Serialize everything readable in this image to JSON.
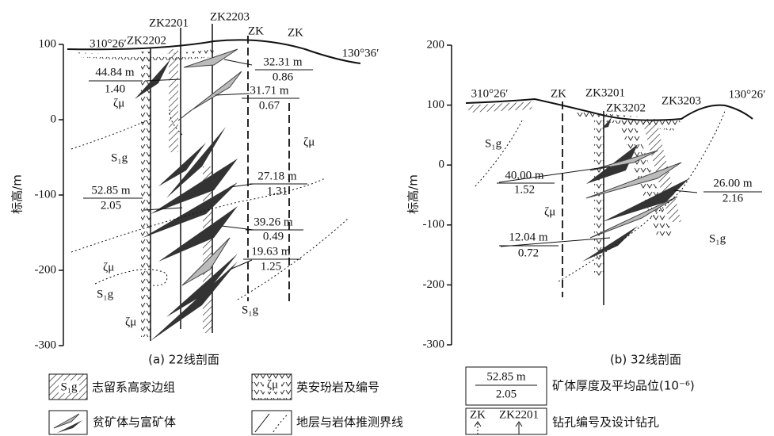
{
  "panels": [
    {
      "ylim": [
        -300,
        100
      ],
      "yticks": [
        -300,
        -200,
        -100,
        0,
        100
      ],
      "axis_label": "标高/m",
      "caption": "(a) 22线剖面",
      "bearings": [
        "310°26′",
        "130°36′"
      ],
      "drillholes": [
        "ZK2202",
        "ZK2201",
        "ZK2203",
        "ZK",
        "ZK"
      ],
      "orebodies": [
        {
          "thickness": "44.84 m",
          "grade": "1.40"
        },
        {
          "thickness": "32.31 m",
          "grade": "0.86"
        },
        {
          "thickness": "31.71 m",
          "grade": "0.67"
        },
        {
          "thickness": "27.18 m",
          "grade": "1.31"
        },
        {
          "thickness": "52.85 m",
          "grade": "2.05"
        },
        {
          "thickness": "39.26 m",
          "grade": "0.49"
        },
        {
          "thickness": "19.63 m",
          "grade": "1.25"
        }
      ],
      "rock_labels": [
        "ζμ",
        "ζμ",
        "ζμ",
        "ζμ",
        "S₁g",
        "S₁g",
        "S₁g"
      ]
    },
    {
      "ylim": [
        -300,
        200
      ],
      "yticks": [
        -300,
        -200,
        -100,
        0,
        100,
        200
      ],
      "axis_label": "标高/m",
      "caption": "(b) 32线剖面",
      "bearings": [
        "310°26′",
        "130°26′"
      ],
      "drillholes": [
        "ZK",
        "ZK3201",
        "ZK3202",
        "ZK3203"
      ],
      "orebodies": [
        {
          "thickness": "40.00 m",
          "grade": "1.52"
        },
        {
          "thickness": "26.00 m",
          "grade": "2.16"
        },
        {
          "thickness": "12.04 m",
          "grade": "0.72"
        }
      ],
      "rock_labels": [
        "ζμ",
        "S₁g",
        "S₁g"
      ]
    }
  ],
  "legend": [
    {
      "label": "志留系高家边组",
      "symbol": "S₁g"
    },
    {
      "label": "英安玢岩及编号",
      "symbol": "ζμ"
    },
    {
      "label": "矿体厚度及平均品位(10⁻⁶)",
      "symbol": [
        "52.85 m",
        "2.05"
      ]
    },
    {
      "label": "贫矿体与富矿体"
    },
    {
      "label": "地层与岩体推测界线"
    },
    {
      "label": "钻孔编号及设计钻孔",
      "symbol": [
        "ZK",
        "ZK2201"
      ]
    }
  ]
}
